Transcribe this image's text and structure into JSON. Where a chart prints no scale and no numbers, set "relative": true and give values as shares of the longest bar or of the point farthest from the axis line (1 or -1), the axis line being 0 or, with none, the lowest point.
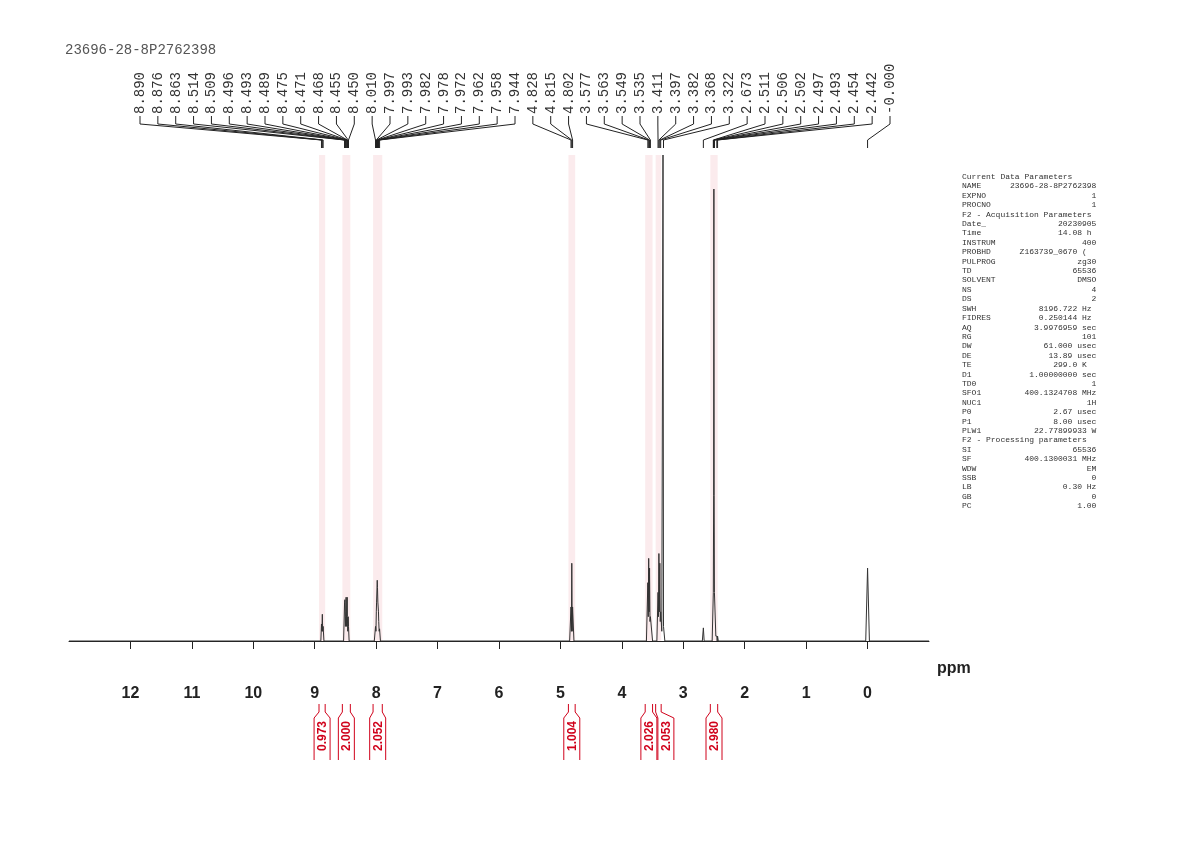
{
  "chart_data": {
    "type": "line",
    "title": "23696-28-8P2762398",
    "xlabel": "ppm",
    "relative": true,
    "xlim": [
      13,
      -1
    ],
    "xticks": [
      12,
      11,
      10,
      9,
      8,
      7,
      6,
      5,
      4,
      3,
      2,
      1,
      0
    ],
    "grid": false,
    "marker": "none",
    "line_style": "solid",
    "series": [
      {
        "color": "#333333",
        "x": [
          13,
          9.2,
          8.9,
          8.89,
          8.883,
          8.876,
          8.87,
          8.863,
          8.85,
          8.53,
          8.514,
          8.509,
          8.5,
          8.496,
          8.493,
          8.489,
          8.482,
          8.475,
          8.471,
          8.468,
          8.462,
          8.455,
          8.45,
          8.44,
          8.03,
          8.01,
          8.003,
          7.997,
          7.993,
          7.982,
          7.978,
          7.972,
          7.962,
          7.958,
          7.951,
          7.944,
          7.93,
          4.85,
          4.828,
          4.821,
          4.815,
          4.808,
          4.802,
          4.78,
          3.6,
          3.577,
          3.57,
          3.563,
          3.556,
          3.549,
          3.542,
          3.535,
          3.5,
          3.43,
          3.411,
          3.404,
          3.397,
          3.39,
          3.382,
          3.375,
          3.368,
          3.35,
          3.33,
          3.322,
          3.3,
          2.69,
          2.673,
          2.66,
          2.53,
          2.511,
          2.506,
          2.502,
          2.497,
          2.493,
          2.47,
          2.454,
          2.448,
          2.442,
          2.43,
          0.03,
          0,
          -0.03,
          -1
        ],
        "values": [
          0,
          0,
          0,
          0.035,
          0.02,
          0.055,
          0.02,
          0.03,
          0,
          0,
          0.08,
          0.085,
          0.03,
          0.05,
          0.06,
          0.09,
          0.03,
          0.07,
          0.09,
          0.05,
          0.02,
          0.05,
          0.03,
          0,
          0,
          0.03,
          0.02,
          0.06,
          0.08,
          0.125,
          0.11,
          0.08,
          0.06,
          0.04,
          0.02,
          0.025,
          0,
          0,
          0.07,
          0.02,
          0.16,
          0.02,
          0.07,
          0,
          0,
          0.12,
          0.05,
          0.17,
          0.06,
          0.15,
          0.04,
          0.05,
          0,
          0,
          0.1,
          0.05,
          0.18,
          0.06,
          0.16,
          0.04,
          0.06,
          0.02,
          1,
          0.03,
          0,
          0,
          0.027,
          0,
          0,
          0.1,
          0.3,
          0.93,
          0.3,
          0.1,
          0.01,
          0.01,
          0,
          0.01,
          0,
          0,
          0.15,
          0,
          0
        ]
      }
    ],
    "bands": [
      {
        "axis": "x",
        "from": 8.93,
        "to": 8.83,
        "label": "0.973",
        "color": "#d0021b"
      },
      {
        "axis": "x",
        "from": 8.55,
        "to": 8.42,
        "label": "2.000",
        "color": "#d0021b"
      },
      {
        "axis": "x",
        "from": 8.05,
        "to": 7.9,
        "label": "2.052",
        "color": "#d0021b"
      },
      {
        "axis": "x",
        "from": 4.87,
        "to": 4.76,
        "label": "1.004",
        "color": "#d0021b"
      },
      {
        "axis": "x",
        "from": 3.62,
        "to": 3.5,
        "label": "2.026",
        "color": "#d0021b"
      },
      {
        "axis": "x",
        "from": 3.45,
        "to": 3.36,
        "label": "2.053",
        "color": "#d0021b"
      },
      {
        "axis": "x",
        "from": 2.56,
        "to": 2.44,
        "label": "2.980",
        "color": "#d0021b"
      }
    ],
    "annotations": [
      {
        "text": "8.890",
        "x": 8.89
      },
      {
        "text": "8.876",
        "x": 8.876
      },
      {
        "text": "8.863",
        "x": 8.863
      },
      {
        "text": "8.514",
        "x": 8.514
      },
      {
        "text": "8.509",
        "x": 8.509
      },
      {
        "text": "8.496",
        "x": 8.496
      },
      {
        "text": "8.493",
        "x": 8.493
      },
      {
        "text": "8.489",
        "x": 8.489
      },
      {
        "text": "8.475",
        "x": 8.475
      },
      {
        "text": "8.471",
        "x": 8.471
      },
      {
        "text": "8.468",
        "x": 8.468
      },
      {
        "text": "8.455",
        "x": 8.455
      },
      {
        "text": "8.450",
        "x": 8.45
      },
      {
        "text": "8.010",
        "x": 8.01
      },
      {
        "text": "7.997",
        "x": 7.997
      },
      {
        "text": "7.993",
        "x": 7.993
      },
      {
        "text": "7.982",
        "x": 7.982
      },
      {
        "text": "7.978",
        "x": 7.978
      },
      {
        "text": "7.972",
        "x": 7.972
      },
      {
        "text": "7.962",
        "x": 7.962
      },
      {
        "text": "7.958",
        "x": 7.958
      },
      {
        "text": "7.944",
        "x": 7.944
      },
      {
        "text": "4.828",
        "x": 4.828
      },
      {
        "text": "4.815",
        "x": 4.815
      },
      {
        "text": "4.802",
        "x": 4.802
      },
      {
        "text": "3.577",
        "x": 3.577
      },
      {
        "text": "3.563",
        "x": 3.563
      },
      {
        "text": "3.549",
        "x": 3.549
      },
      {
        "text": "3.535",
        "x": 3.535
      },
      {
        "text": "3.411",
        "x": 3.411
      },
      {
        "text": "3.397",
        "x": 3.397
      },
      {
        "text": "3.382",
        "x": 3.382
      },
      {
        "text": "3.368",
        "x": 3.368
      },
      {
        "text": "3.322",
        "x": 3.322
      },
      {
        "text": "2.673",
        "x": 2.673
      },
      {
        "text": "2.511",
        "x": 2.511
      },
      {
        "text": "2.506",
        "x": 2.506
      },
      {
        "text": "2.502",
        "x": 2.502
      },
      {
        "text": "2.497",
        "x": 2.497
      },
      {
        "text": "2.493",
        "x": 2.493
      },
      {
        "text": "2.454",
        "x": 2.454
      },
      {
        "text": "2.442",
        "x": 2.442
      },
      {
        "text": "-0.000",
        "x": 0
      },
      "Current Data Parameters",
      "NAME      23696-28-8P2762398",
      "EXPNO                      1",
      "PROCNO                     1",
      "F2 - Acquisition Parameters",
      "Date_               20230905",
      "Time                14.08 h",
      "INSTRUM                  400",
      "PROBHD      Z163739_0670 (",
      "PULPROG                 zg30",
      "TD                     65536",
      "SOLVENT                 DMSO",
      "NS                         4",
      "DS                         2",
      "SWH             8196.722 Hz",
      "FIDRES          0.250144 Hz",
      "AQ             3.9976959 sec",
      "RG                       101",
      "DW               61.000 usec",
      "DE                13.89 usec",
      "TE                 299.0 K",
      "D1            1.00000000 sec",
      "TD0                        1",
      "SFO1         400.1324708 MHz",
      "NUC1                      1H",
      "P0                 2.67 usec",
      "P1                 8.00 usec",
      "PLW1           22.77899933 W",
      "F2 - Processing parameters",
      "SI                     65536",
      "SF           400.1300031 MHz",
      "WDW                       EM",
      "SSB                        0",
      "LB                   0.30 Hz",
      "GB                         0",
      "PC                      1.00"
    ]
  }
}
